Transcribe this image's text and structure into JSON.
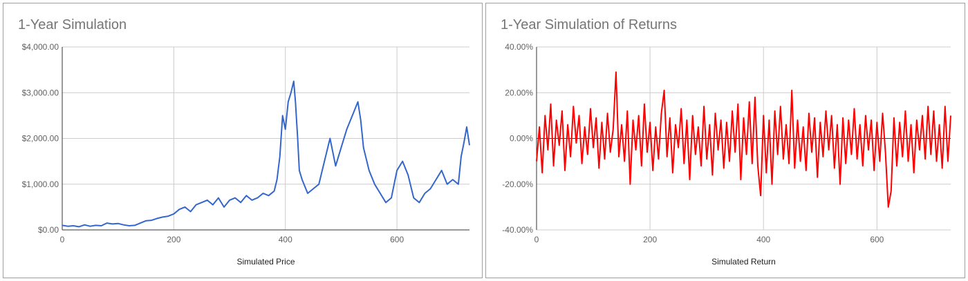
{
  "chart_data": [
    {
      "type": "line",
      "title": "1-Year Simulation",
      "xlabel": "Simulated Price",
      "ylabel": "",
      "xlim": [
        0,
        730
      ],
      "ylim": [
        0,
        4000
      ],
      "x_ticks": [
        0,
        200,
        400,
        600
      ],
      "x_tick_labels": [
        "0",
        "200",
        "400",
        "600"
      ],
      "y_ticks": [
        0,
        1000,
        2000,
        3000,
        4000
      ],
      "y_tick_labels": [
        "$0.00",
        "$1,000.00",
        "$2,000.00",
        "$3,000.00",
        "$4,000.00"
      ],
      "grid": true,
      "legend": "none",
      "series": [
        {
          "color": "#3366cc",
          "x": [
            0,
            10,
            20,
            30,
            40,
            50,
            60,
            70,
            80,
            90,
            100,
            110,
            120,
            130,
            140,
            150,
            160,
            170,
            180,
            190,
            200,
            210,
            220,
            230,
            240,
            250,
            260,
            270,
            280,
            290,
            300,
            310,
            320,
            330,
            340,
            350,
            360,
            370,
            380,
            385,
            390,
            395,
            400,
            405,
            410,
            415,
            418,
            422,
            425,
            430,
            440,
            450,
            460,
            470,
            480,
            490,
            500,
            510,
            520,
            530,
            535,
            540,
            550,
            560,
            570,
            580,
            590,
            600,
            610,
            620,
            630,
            640,
            650,
            660,
            670,
            680,
            690,
            700,
            710,
            715,
            720,
            725,
            730
          ],
          "y": [
            100,
            80,
            90,
            70,
            110,
            80,
            100,
            90,
            150,
            130,
            140,
            110,
            90,
            100,
            150,
            200,
            210,
            250,
            280,
            300,
            350,
            450,
            500,
            400,
            550,
            600,
            650,
            550,
            700,
            500,
            650,
            700,
            600,
            750,
            650,
            700,
            800,
            750,
            850,
            1100,
            1600,
            2500,
            2200,
            2800,
            3000,
            3250,
            2800,
            2000,
            1300,
            1100,
            800,
            900,
            1000,
            1500,
            2000,
            1400,
            1800,
            2200,
            2500,
            2800,
            2400,
            1800,
            1300,
            1000,
            800,
            600,
            700,
            1300,
            1500,
            1200,
            700,
            600,
            800,
            900,
            1100,
            1300,
            1000,
            1100,
            1000,
            1600,
            1900,
            2250,
            1850
          ]
        }
      ]
    },
    {
      "type": "line",
      "title": "1-Year Simulation of Returns",
      "xlabel": "Simulated Return",
      "ylabel": "",
      "xlim": [
        0,
        730
      ],
      "ylim": [
        -40,
        40
      ],
      "x_ticks": [
        0,
        200,
        400,
        600
      ],
      "x_tick_labels": [
        "0",
        "200",
        "400",
        "600"
      ],
      "y_ticks": [
        -40,
        -20,
        0,
        20,
        40
      ],
      "y_tick_labels": [
        "-40.00%",
        "-20.00%",
        "0.00%",
        "20.00%",
        "40.00%"
      ],
      "grid": true,
      "legend": "none",
      "series": [
        {
          "color": "#ff0000",
          "x": [
            0,
            5,
            10,
            15,
            20,
            25,
            30,
            35,
            40,
            45,
            50,
            55,
            60,
            65,
            70,
            75,
            80,
            85,
            90,
            95,
            100,
            105,
            110,
            115,
            120,
            125,
            130,
            135,
            140,
            145,
            150,
            155,
            160,
            165,
            170,
            175,
            180,
            185,
            190,
            195,
            200,
            205,
            210,
            215,
            220,
            225,
            230,
            235,
            240,
            245,
            250,
            255,
            260,
            265,
            270,
            275,
            280,
            285,
            290,
            295,
            300,
            305,
            310,
            315,
            320,
            325,
            330,
            335,
            340,
            345,
            350,
            355,
            360,
            365,
            370,
            375,
            380,
            385,
            390,
            395,
            400,
            405,
            410,
            415,
            420,
            425,
            430,
            435,
            440,
            445,
            450,
            455,
            460,
            465,
            470,
            475,
            480,
            485,
            490,
            495,
            500,
            505,
            510,
            515,
            520,
            525,
            530,
            535,
            540,
            545,
            550,
            555,
            560,
            565,
            570,
            575,
            580,
            585,
            590,
            595,
            600,
            605,
            610,
            615,
            620,
            625,
            630,
            635,
            640,
            645,
            650,
            655,
            660,
            665,
            670,
            675,
            680,
            685,
            690,
            695,
            700,
            705,
            710,
            715,
            720,
            725,
            730
          ],
          "y": [
            -10,
            5,
            -15,
            10,
            -5,
            15,
            -12,
            8,
            -3,
            12,
            -14,
            6,
            -8,
            14,
            -2,
            10,
            -11,
            5,
            -7,
            13,
            -4,
            9,
            -13,
            7,
            -9,
            11,
            -6,
            4,
            29,
            -8,
            6,
            -10,
            12,
            -20,
            8,
            -5,
            10,
            -12,
            15,
            -6,
            7,
            -14,
            5,
            -9,
            11,
            21,
            -8,
            9,
            -15,
            6,
            -4,
            13,
            -11,
            8,
            -18,
            10,
            -7,
            5,
            -12,
            14,
            -9,
            6,
            -16,
            11,
            -5,
            8,
            -13,
            7,
            -10,
            12,
            -6,
            15,
            -18,
            9,
            -7,
            16,
            -11,
            18,
            -12,
            -25,
            10,
            -15,
            8,
            -20,
            12,
            -7,
            14,
            -9,
            6,
            -11,
            21,
            -13,
            8,
            -10,
            5,
            -14,
            11,
            -6,
            9,
            -17,
            7,
            -8,
            12,
            -5,
            10,
            -13,
            6,
            -20,
            9,
            -11,
            8,
            -7,
            13,
            -9,
            6,
            -12,
            10,
            -5,
            8,
            -14,
            7,
            -10,
            11,
            -6,
            -30,
            -23,
            9,
            -12,
            7,
            -8,
            12,
            -10,
            6,
            -15,
            8,
            -5,
            10,
            -9,
            14,
            -7,
            12,
            -10,
            6,
            -13,
            14,
            -10,
            10
          ]
        }
      ]
    }
  ]
}
